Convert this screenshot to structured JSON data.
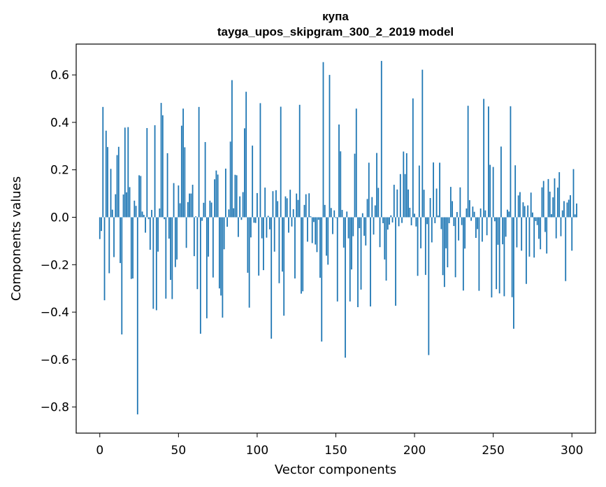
{
  "chart_data": {
    "type": "bar",
    "title_line1": "купа",
    "title_line2": "tayga_upos_skipgram_300_2_2019 model",
    "xlabel": "Vector components",
    "ylabel": "Components values",
    "xlim": [
      -15,
      315
    ],
    "ylim": [
      -0.91,
      0.73
    ],
    "xticks": [
      0,
      50,
      100,
      150,
      200,
      250,
      300
    ],
    "xtick_labels": [
      "0",
      "50",
      "100",
      "150",
      "200",
      "250",
      "300"
    ],
    "yticks": [
      -0.8,
      -0.6,
      -0.4,
      -0.2,
      0.0,
      0.2,
      0.4,
      0.6
    ],
    "ytick_labels": [
      "−0.8",
      "−0.6",
      "−0.4",
      "−0.2",
      "0.0",
      "0.2",
      "0.4",
      "0.6"
    ],
    "bar_color": "#1f77b4",
    "values": [
      -0.092,
      -0.058,
      0.465,
      -0.35,
      0.365,
      0.296,
      -0.236,
      0.204,
      0.032,
      -0.168,
      0.097,
      0.262,
      0.297,
      -0.193,
      -0.494,
      0.096,
      0.378,
      0.105,
      0.38,
      0.127,
      -0.26,
      -0.258,
      0.07,
      0.048,
      -0.831,
      0.177,
      0.174,
      0.024,
      0.01,
      -0.065,
      0.376,
      -0.008,
      -0.137,
      0.031,
      -0.386,
      0.388,
      -0.392,
      -0.145,
      0.037,
      0.482,
      0.43,
      -0.008,
      -0.343,
      0.27,
      -0.09,
      -0.264,
      -0.345,
      0.144,
      -0.21,
      -0.178,
      0.134,
      0.059,
      0.386,
      0.458,
      0.295,
      -0.129,
      0.064,
      0.1,
      0.1,
      0.137,
      -0.164,
      0.004,
      -0.303,
      0.465,
      -0.491,
      -0.015,
      0.061,
      0.317,
      -0.426,
      -0.166,
      0.07,
      0.062,
      -0.254,
      0.16,
      0.197,
      0.18,
      -0.3,
      -0.33,
      -0.423,
      -0.135,
      0.205,
      -0.04,
      0.033,
      0.319,
      0.578,
      0.038,
      0.179,
      0.177,
      -0.083,
      0.088,
      -0.011,
      0.106,
      0.375,
      0.529,
      -0.234,
      -0.381,
      -0.085,
      0.302,
      -0.023,
      -0.024,
      0.102,
      -0.246,
      0.481,
      -0.089,
      -0.223,
      0.125,
      -0.086,
      0.006,
      -0.051,
      -0.512,
      0.11,
      -0.145,
      0.114,
      0.068,
      -0.278,
      0.466,
      -0.229,
      -0.415,
      0.088,
      0.08,
      -0.065,
      0.116,
      -0.039,
      0.034,
      -0.258,
      0.1,
      0.073,
      0.474,
      -0.322,
      -0.312,
      0.052,
      0.097,
      -0.103,
      0.101,
      0.004,
      -0.109,
      -0.02,
      -0.115,
      -0.147,
      -0.011,
      -0.255,
      -0.524,
      0.654,
      0.052,
      -0.162,
      -0.2,
      0.6,
      0.039,
      -0.071,
      0.029,
      -0.003,
      -0.355,
      0.391,
      0.278,
      0.031,
      -0.128,
      -0.592,
      0.024,
      -0.089,
      -0.355,
      -0.22,
      -0.08,
      0.268,
      0.458,
      -0.379,
      -0.046,
      -0.305,
      0.017,
      -0.078,
      -0.119,
      0.077,
      0.23,
      -0.376,
      0.085,
      -0.073,
      0.05,
      0.271,
      0.124,
      -0.126,
      0.659,
      -0.025,
      -0.178,
      -0.267,
      -0.052,
      -0.031,
      0.008,
      -0.022,
      0.137,
      -0.373,
      0.117,
      -0.038,
      0.182,
      -0.024,
      0.277,
      0.182,
      0.27,
      0.117,
      0.04,
      -0.034,
      0.501,
      0.015,
      -0.039,
      -0.247,
      0.218,
      -0.131,
      0.622,
      0.116,
      -0.243,
      -0.029,
      -0.581,
      0.081,
      -0.106,
      0.231,
      -0.025,
      0.121,
      0.007,
      0.23,
      -0.05,
      -0.244,
      -0.294,
      -0.131,
      -0.211,
      -0.025,
      0.128,
      0.068,
      -0.037,
      -0.253,
      0.022,
      -0.098,
      0.126,
      -0.033,
      -0.309,
      -0.132,
      0.037,
      0.47,
      0.072,
      -0.015,
      0.045,
      0.023,
      -0.087,
      -0.05,
      -0.31,
      0.037,
      -0.103,
      0.499,
      0.029,
      -0.076,
      0.467,
      0.221,
      -0.338,
      0.212,
      -0.017,
      -0.303,
      -0.116,
      -0.321,
      0.298,
      -0.114,
      -0.333,
      -0.082,
      0.032,
      0.024,
      0.468,
      -0.337,
      -0.47,
      0.219,
      -0.127,
      0.092,
      0.106,
      -0.141,
      0.063,
      0.047,
      -0.281,
      0.05,
      -0.166,
      0.104,
      0.02,
      -0.17,
      -0.016,
      -0.033,
      -0.091,
      -0.135,
      0.126,
      0.153,
      -0.062,
      -0.153,
      0.161,
      0.108,
      0.013,
      0.084,
      0.164,
      -0.089,
      0.125,
      0.19,
      -0.08,
      0.029,
      0.068,
      -0.269,
      0.062,
      0.074,
      0.093,
      -0.141,
      0.203,
      0.012,
      0.058
    ]
  }
}
